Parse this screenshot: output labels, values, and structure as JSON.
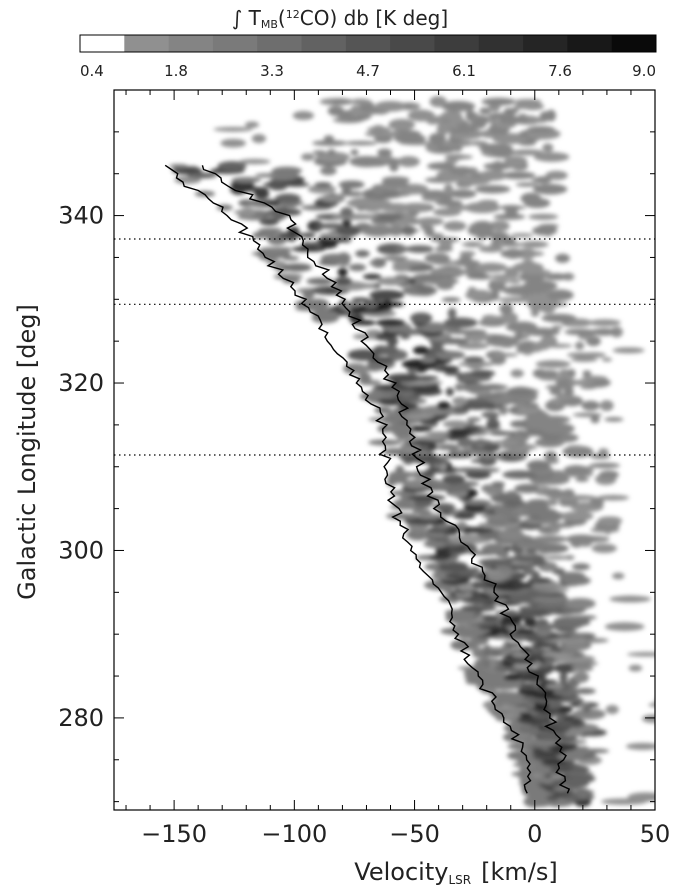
{
  "chart_data": {
    "type": "heatmap",
    "colorbar": {
      "title": "∫ T",
      "title_sub": "MB",
      "title_mid": "(",
      "title_sup": "12",
      "title_end": "CO) db [K deg]",
      "ticks": [
        "0.4",
        "1.8",
        "3.3",
        "4.7",
        "6.1",
        "7.6",
        "9.0"
      ],
      "range": [
        0.4,
        9.0
      ],
      "levels": [
        "#ffffff",
        "#909090",
        "#848484",
        "#7a7a7a",
        "#6e6e6e",
        "#626262",
        "#555555",
        "#494949",
        "#3d3d3d",
        "#313131",
        "#252525",
        "#181818",
        "#0a0a0a"
      ]
    },
    "xlabel": "Velocity",
    "xlabel_sub": "LSR",
    "xlabel_unit": "[km/s]",
    "ylabel": "Galactic Longitude [deg]",
    "xlim": [
      -175,
      50
    ],
    "ylim": [
      269,
      355
    ],
    "x_ticks": [
      -150,
      -100,
      -50,
      0,
      50
    ],
    "x_tick_labels": [
      "−150",
      "−100",
      "−50",
      "0",
      "50"
    ],
    "y_ticks": [
      280,
      300,
      320,
      340
    ],
    "y_tick_labels": [
      "280",
      "300",
      "320",
      "340"
    ],
    "dotted_lines_l": [
      337.2,
      329.4,
      311.4
    ],
    "curve_left": {
      "l": [
        271,
        275,
        280,
        285,
        290,
        295,
        300,
        305,
        310,
        315,
        320,
        325,
        330,
        335,
        340,
        346
      ],
      "v": [
        -2,
        -4,
        -12,
        -24,
        -32,
        -38,
        -52,
        -58,
        -62,
        -63,
        -72,
        -86,
        -96,
        -112,
        -126,
        -156
      ]
    },
    "curve_right": {
      "l": [
        271,
        275,
        280,
        285,
        290,
        295,
        300,
        305,
        310,
        315,
        320,
        325,
        330,
        335,
        340,
        346
      ],
      "v": [
        12,
        11,
        6,
        0,
        -8,
        -16,
        -28,
        -40,
        -48,
        -52,
        -60,
        -70,
        -79,
        -92,
        -104,
        -140
      ]
    }
  }
}
